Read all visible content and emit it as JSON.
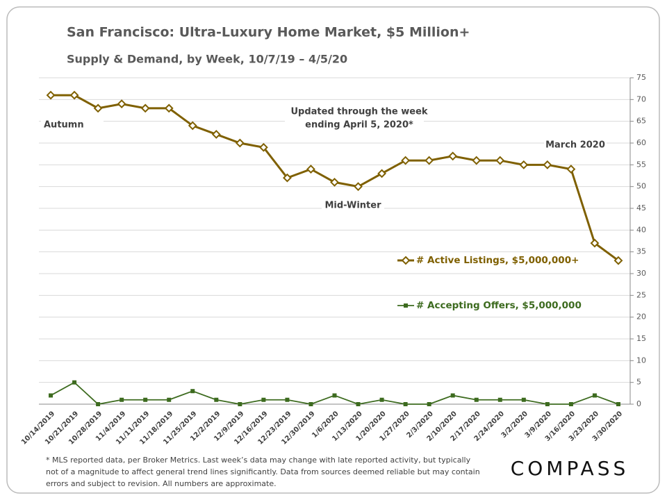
{
  "chart_data": {
    "type": "line",
    "title": "San Francisco: Ultra-Luxury Home Market, $5 Million+",
    "subtitle": "Supply & Demand, by Week, 10/7/19 – 4/5/20",
    "categories": [
      "10/14/2019",
      "10/21/2019",
      "10/28/2019",
      "11/4/2019",
      "11/11/2019",
      "11/18/2019",
      "11/25/2019",
      "12/2/2019",
      "12/9/2019",
      "12/16/2019",
      "12/23/2019",
      "12/30/2019",
      "1/6/2020",
      "1/13/2020",
      "1/20/2020",
      "1/27/2020",
      "2/3/2020",
      "2/10/2020",
      "2/17/2020",
      "2/24/2020",
      "3/2/2020",
      "3/9/2020",
      "3/16/2020",
      "3/23/2020",
      "3/30/2020"
    ],
    "series": [
      {
        "name": "# Active Listings, $5,000,000+",
        "color": "#7f6000",
        "marker": "diamond",
        "values": [
          71,
          71,
          68,
          69,
          68,
          68,
          64,
          62,
          60,
          59,
          52,
          54,
          51,
          50,
          53,
          56,
          56,
          57,
          56,
          56,
          55,
          55,
          54,
          37,
          33
        ]
      },
      {
        "name": "# Accepting Offers, $5,000,000",
        "color": "#3d6b1f",
        "marker": "square",
        "values": [
          2,
          5,
          0,
          1,
          1,
          1,
          3,
          1,
          0,
          1,
          1,
          0,
          2,
          0,
          1,
          0,
          0,
          2,
          1,
          1,
          1,
          0,
          0,
          2,
          0
        ]
      }
    ],
    "ylim": [
      0,
      75
    ],
    "yticks": [
      0,
      5,
      10,
      15,
      20,
      25,
      30,
      35,
      40,
      45,
      50,
      55,
      60,
      65,
      70,
      75
    ],
    "grid": true,
    "y_axis_side": "right",
    "annotations": [
      "Autumn",
      "Mid-Winter",
      "March 2020"
    ],
    "note": [
      "Updated through the week",
      "ending April 5, 2020*"
    ],
    "footnote": [
      "* MLS reported data, per Broker Metrics. Last week’s data may change with late reported activity, but typically",
      "not of a magnitude to affect general trend lines significantly. Data from sources deemed reliable but may contain",
      "errors and subject to revision. All numbers are approximate."
    ],
    "logo": "COMPASS"
  }
}
